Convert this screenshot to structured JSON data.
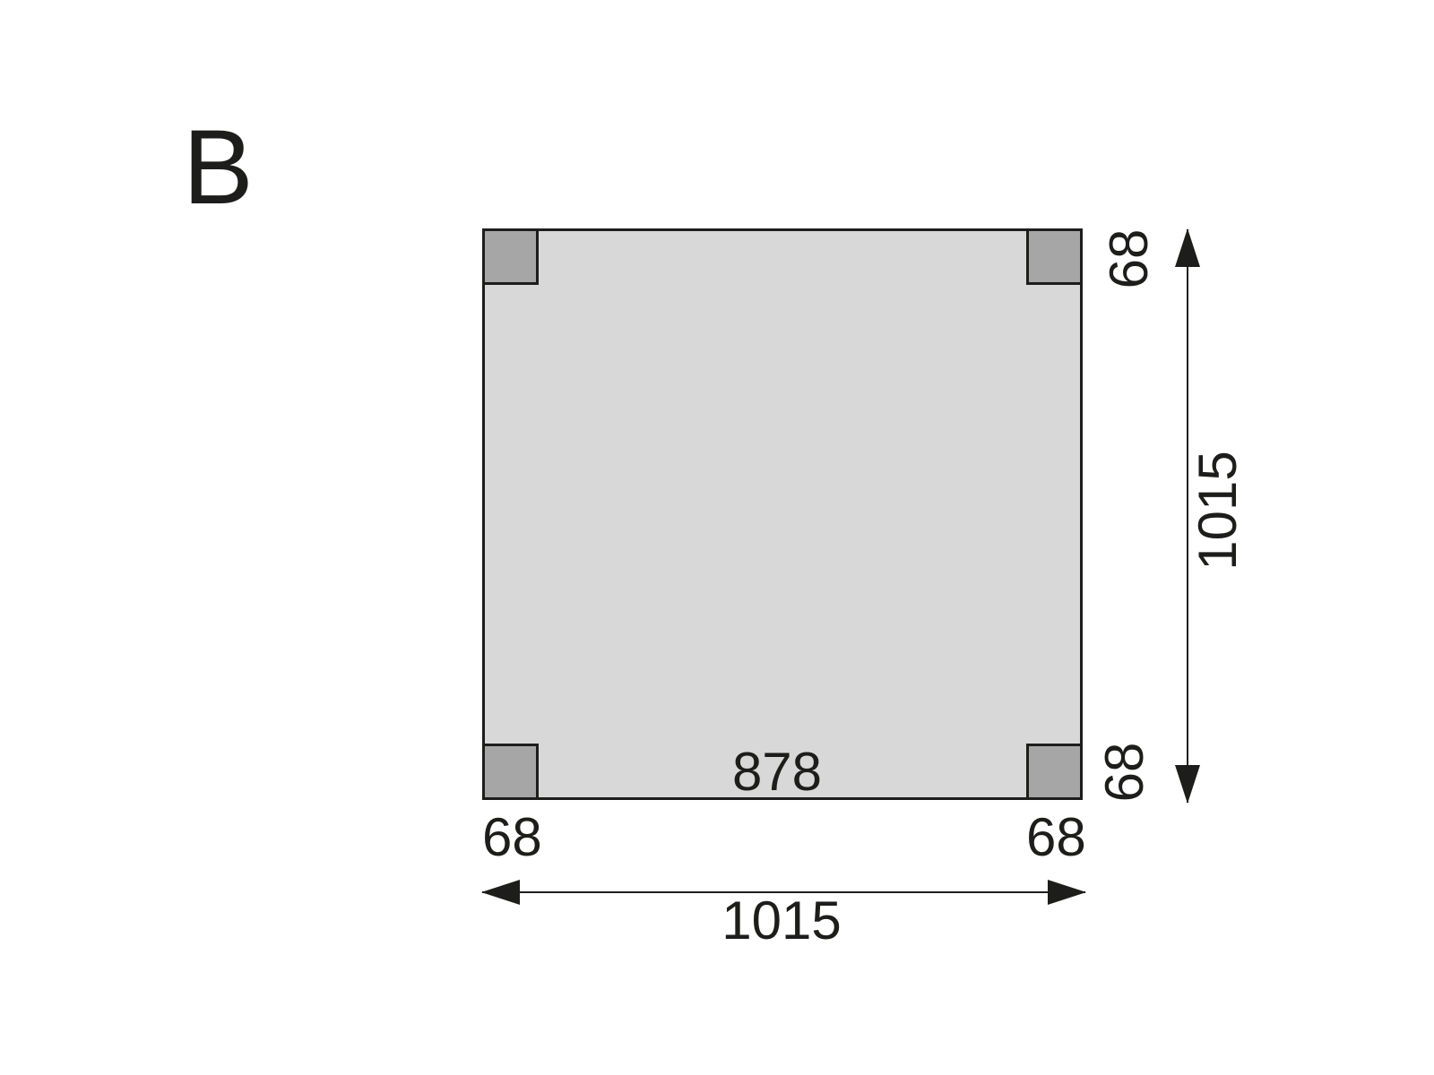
{
  "figure": {
    "label": "B"
  },
  "plan": {
    "type": "floor-plan-top-view",
    "labels": {
      "inner_span": "878",
      "total_width": "1015",
      "total_height": "1015",
      "post_width_left": "68",
      "post_width_right": "68",
      "post_depth_top": "68",
      "post_depth_bottom": "68"
    },
    "colors": {
      "background": "#ffffff",
      "plan_fill": "#d8d8d8",
      "post_fill": "#a6a6a6",
      "line": "#1d1d1b"
    }
  }
}
